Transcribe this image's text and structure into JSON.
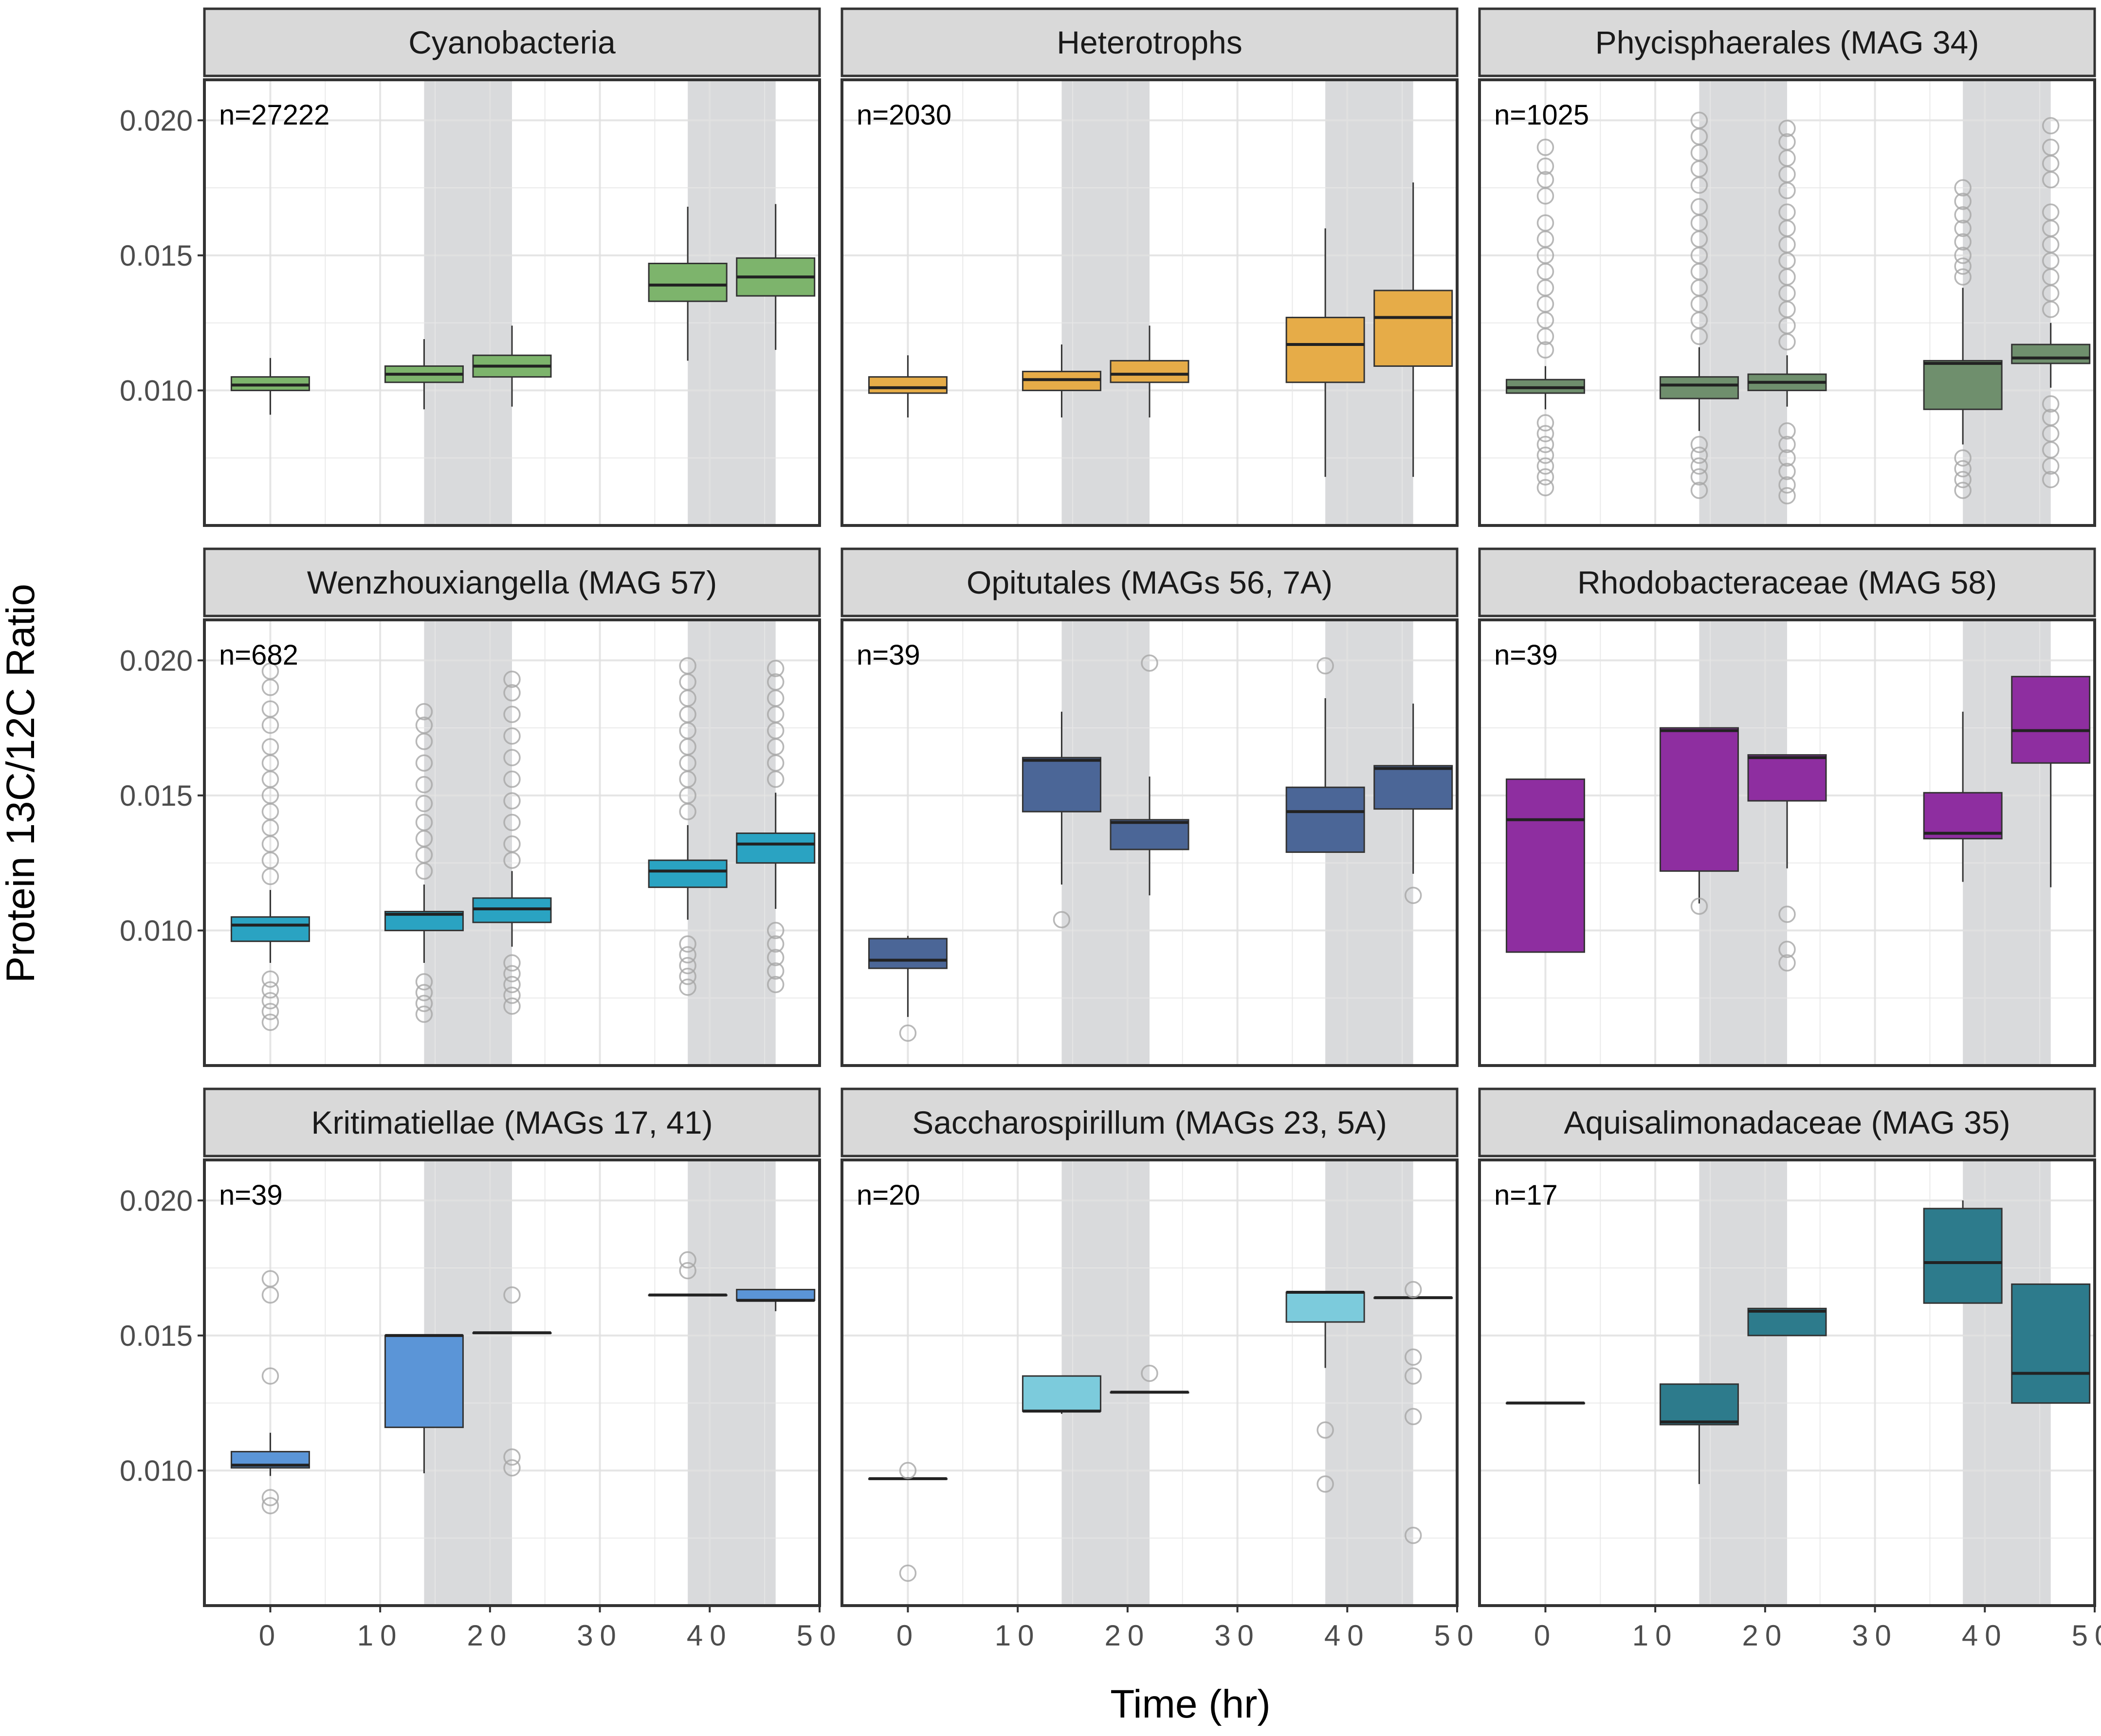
{
  "chart_data": {
    "type": "boxplot",
    "xlabel": "Time (hr)",
    "ylabel": "Protein 13C/12C Ratio",
    "x_ticks": [
      "0",
      "10",
      "20",
      "30",
      "40",
      "50"
    ],
    "y_ticks": [
      "0.010",
      "0.015",
      "0.020"
    ],
    "xlim": [
      -6,
      50
    ],
    "ylim": [
      0.005,
      0.0215
    ],
    "grid": true,
    "dark_periods_hr": [
      [
        14,
        22
      ],
      [
        38,
        46
      ]
    ],
    "colors": {
      "Cyanobacteria": "#7db46c",
      "Heterotrophs": "#e6ac48",
      "Phycisphaerales (MAG 34)": "#6f8f6d",
      "Wenzhouxiangella (MAG 57)": "#2aa3c2",
      "Opitutales (MAGs 56, 7A)": "#4b6697",
      "Rhodobacteraceae (MAG 58)": "#8e2ea0",
      "Kritimatiellae (MAGs 17, 41)": "#5b95d7",
      "Saccharospirillum (MAGs 23, 5A)": "#7ccbdc",
      "Aquisalimonadaceae (MAG 35)": "#2d7b8c",
      "strip_fill": "#d9d9d9",
      "shade": "#d9dadc",
      "outlier": "#a6a6a6"
    },
    "panels": [
      {
        "title": "Cyanobacteria",
        "n_label": "n=27222",
        "boxes": [
          {
            "x": 0,
            "q1": 0.01,
            "median": 0.0102,
            "q3": 0.0105,
            "lo": 0.0091,
            "hi": 0.0112,
            "outliers": []
          },
          {
            "x": 14,
            "q1": 0.0103,
            "median": 0.0106,
            "q3": 0.0109,
            "lo": 0.0093,
            "hi": 0.0119,
            "outliers": []
          },
          {
            "x": 22,
            "q1": 0.0105,
            "median": 0.0109,
            "q3": 0.0113,
            "lo": 0.0094,
            "hi": 0.0124,
            "outliers": []
          },
          {
            "x": 38,
            "q1": 0.0133,
            "median": 0.0139,
            "q3": 0.0147,
            "lo": 0.0111,
            "hi": 0.0168,
            "outliers": []
          },
          {
            "x": 46,
            "q1": 0.0135,
            "median": 0.0142,
            "q3": 0.0149,
            "lo": 0.0115,
            "hi": 0.0169,
            "outliers": []
          }
        ]
      },
      {
        "title": "Heterotrophs",
        "n_label": "n=2030",
        "boxes": [
          {
            "x": 0,
            "q1": 0.0099,
            "median": 0.0101,
            "q3": 0.0105,
            "lo": 0.009,
            "hi": 0.0113,
            "outliers": []
          },
          {
            "x": 14,
            "q1": 0.01,
            "median": 0.0104,
            "q3": 0.0107,
            "lo": 0.009,
            "hi": 0.0117,
            "outliers": []
          },
          {
            "x": 22,
            "q1": 0.0103,
            "median": 0.0106,
            "q3": 0.0111,
            "lo": 0.009,
            "hi": 0.0124,
            "outliers": []
          },
          {
            "x": 38,
            "q1": 0.0103,
            "median": 0.0117,
            "q3": 0.0127,
            "lo": 0.0068,
            "hi": 0.016,
            "outliers": []
          },
          {
            "x": 46,
            "q1": 0.0109,
            "median": 0.0127,
            "q3": 0.0137,
            "lo": 0.0068,
            "hi": 0.0177,
            "outliers": []
          }
        ]
      },
      {
        "title": "Phycisphaerales (MAG 34)",
        "n_label": "n=1025",
        "boxes": [
          {
            "x": 0,
            "q1": 0.0099,
            "median": 0.0101,
            "q3": 0.0104,
            "lo": 0.0093,
            "hi": 0.0109,
            "outliers": [
              0.0064,
              0.0068,
              0.0072,
              0.0076,
              0.008,
              0.0084,
              0.0088,
              0.0115,
              0.012,
              0.0126,
              0.0132,
              0.0138,
              0.0144,
              0.015,
              0.0156,
              0.0162,
              0.0172,
              0.0178,
              0.0183,
              0.019
            ]
          },
          {
            "x": 14,
            "q1": 0.0097,
            "median": 0.0102,
            "q3": 0.0105,
            "lo": 0.0085,
            "hi": 0.0116,
            "outliers": [
              0.0063,
              0.0068,
              0.0072,
              0.0076,
              0.008,
              0.012,
              0.0126,
              0.0132,
              0.0138,
              0.0144,
              0.015,
              0.0156,
              0.0162,
              0.0168,
              0.0176,
              0.0182,
              0.0188,
              0.0194,
              0.02
            ]
          },
          {
            "x": 22,
            "q1": 0.01,
            "median": 0.0103,
            "q3": 0.0106,
            "lo": 0.0094,
            "hi": 0.0113,
            "outliers": [
              0.0061,
              0.0065,
              0.007,
              0.0075,
              0.008,
              0.0085,
              0.0118,
              0.0124,
              0.013,
              0.0136,
              0.0142,
              0.0148,
              0.0154,
              0.016,
              0.0166,
              0.0174,
              0.018,
              0.0186,
              0.0192,
              0.0197
            ]
          },
          {
            "x": 38,
            "q1": 0.0093,
            "median": 0.011,
            "q3": 0.0111,
            "lo": 0.008,
            "hi": 0.0138,
            "outliers": [
              0.0063,
              0.0067,
              0.0071,
              0.0075,
              0.0142,
              0.0146,
              0.015,
              0.0155,
              0.016,
              0.0165,
              0.017,
              0.0175
            ]
          },
          {
            "x": 46,
            "q1": 0.011,
            "median": 0.0112,
            "q3": 0.0117,
            "lo": 0.0101,
            "hi": 0.0125,
            "outliers": [
              0.0067,
              0.0072,
              0.0078,
              0.0084,
              0.009,
              0.0095,
              0.013,
              0.0136,
              0.0142,
              0.0148,
              0.0154,
              0.016,
              0.0166,
              0.0178,
              0.0184,
              0.019,
              0.0198
            ]
          }
        ]
      },
      {
        "title": "Wenzhouxiangella (MAG 57)",
        "n_label": "n=682",
        "boxes": [
          {
            "x": 0,
            "q1": 0.0096,
            "median": 0.0102,
            "q3": 0.0105,
            "lo": 0.0088,
            "hi": 0.0115,
            "outliers": [
              0.0066,
              0.007,
              0.0074,
              0.0078,
              0.0082,
              0.012,
              0.0126,
              0.0132,
              0.0138,
              0.0144,
              0.015,
              0.0156,
              0.0162,
              0.0168,
              0.0176,
              0.0182,
              0.019,
              0.0196
            ]
          },
          {
            "x": 14,
            "q1": 0.01,
            "median": 0.0106,
            "q3": 0.0107,
            "lo": 0.0088,
            "hi": 0.0117,
            "outliers": [
              0.0069,
              0.0073,
              0.0077,
              0.0081,
              0.0122,
              0.0128,
              0.0134,
              0.014,
              0.0147,
              0.0154,
              0.0162,
              0.017,
              0.0176,
              0.0181
            ]
          },
          {
            "x": 22,
            "q1": 0.0103,
            "median": 0.0108,
            "q3": 0.0112,
            "lo": 0.0094,
            "hi": 0.0122,
            "outliers": [
              0.0072,
              0.0076,
              0.008,
              0.0084,
              0.0088,
              0.0126,
              0.0132,
              0.014,
              0.0148,
              0.0156,
              0.0164,
              0.0172,
              0.018,
              0.0188,
              0.0193
            ]
          },
          {
            "x": 38,
            "q1": 0.0116,
            "median": 0.0122,
            "q3": 0.0126,
            "lo": 0.0104,
            "hi": 0.0139,
            "outliers": [
              0.0079,
              0.0083,
              0.0087,
              0.0091,
              0.0095,
              0.0144,
              0.015,
              0.0156,
              0.0162,
              0.0168,
              0.0174,
              0.018,
              0.0186,
              0.0192,
              0.0198
            ]
          },
          {
            "x": 46,
            "q1": 0.0125,
            "median": 0.0132,
            "q3": 0.0136,
            "lo": 0.0108,
            "hi": 0.0151,
            "outliers": [
              0.008,
              0.0085,
              0.009,
              0.0095,
              0.01,
              0.0156,
              0.0162,
              0.0168,
              0.0174,
              0.018,
              0.0186,
              0.0192,
              0.0197
            ]
          }
        ]
      },
      {
        "title": "Opitutales (MAGs 56, 7A)",
        "n_label": "n=39",
        "boxes": [
          {
            "x": 0,
            "q1": 0.0086,
            "median": 0.0089,
            "q3": 0.0097,
            "lo": 0.0068,
            "hi": 0.0098,
            "outliers": [
              0.0062
            ]
          },
          {
            "x": 14,
            "q1": 0.0144,
            "median": 0.0163,
            "q3": 0.0164,
            "lo": 0.0117,
            "hi": 0.0181,
            "outliers": [
              0.0104
            ]
          },
          {
            "x": 22,
            "q1": 0.013,
            "median": 0.014,
            "q3": 0.0141,
            "lo": 0.0113,
            "hi": 0.0157,
            "outliers": [
              0.0199
            ]
          },
          {
            "x": 38,
            "q1": 0.0129,
            "median": 0.0144,
            "q3": 0.0153,
            "lo": 0.0129,
            "hi": 0.0186,
            "outliers": [
              0.0198
            ]
          },
          {
            "x": 46,
            "q1": 0.0145,
            "median": 0.016,
            "q3": 0.0161,
            "lo": 0.0121,
            "hi": 0.0184,
            "outliers": [
              0.0113
            ]
          }
        ]
      },
      {
        "title": "Rhodobacteraceae (MAG 58)",
        "n_label": "n=39",
        "boxes": [
          {
            "x": 0,
            "q1": 0.0092,
            "median": 0.0141,
            "q3": 0.0156,
            "lo": 0.0092,
            "hi": 0.0156,
            "outliers": []
          },
          {
            "x": 14,
            "q1": 0.0122,
            "median": 0.0174,
            "q3": 0.0175,
            "lo": 0.011,
            "hi": 0.0175,
            "outliers": [
              0.0109
            ]
          },
          {
            "x": 22,
            "q1": 0.0148,
            "median": 0.0164,
            "q3": 0.0165,
            "lo": 0.0123,
            "hi": 0.0165,
            "outliers": [
              0.0088,
              0.0093,
              0.0106
            ]
          },
          {
            "x": 38,
            "q1": 0.0134,
            "median": 0.0136,
            "q3": 0.0151,
            "lo": 0.0118,
            "hi": 0.0181,
            "outliers": []
          },
          {
            "x": 46,
            "q1": 0.0162,
            "median": 0.0174,
            "q3": 0.0194,
            "lo": 0.0116,
            "hi": 0.0194,
            "outliers": []
          }
        ]
      },
      {
        "title": "Kritimatiellae (MAGs 17, 41)",
        "n_label": "n=39",
        "boxes": [
          {
            "x": 0,
            "q1": 0.0101,
            "median": 0.0102,
            "q3": 0.0107,
            "lo": 0.0098,
            "hi": 0.0114,
            "outliers": [
              0.0087,
              0.009,
              0.0135,
              0.0165,
              0.0171
            ]
          },
          {
            "x": 14,
            "q1": 0.0116,
            "median": 0.015,
            "q3": 0.015,
            "lo": 0.0099,
            "hi": 0.015,
            "outliers": []
          },
          {
            "x": 22,
            "q1": 0.0151,
            "median": 0.0151,
            "q3": 0.0151,
            "lo": 0.0151,
            "hi": 0.0151,
            "outliers": [
              0.0101,
              0.0105,
              0.0165
            ]
          },
          {
            "x": 38,
            "q1": 0.0165,
            "median": 0.0165,
            "q3": 0.0165,
            "lo": 0.0165,
            "hi": 0.0165,
            "outliers": [
              0.0174,
              0.0178
            ]
          },
          {
            "x": 46,
            "q1": 0.0163,
            "median": 0.0163,
            "q3": 0.0167,
            "lo": 0.0159,
            "hi": 0.0167,
            "outliers": []
          }
        ]
      },
      {
        "title": "Saccharospirillum (MAGs 23, 5A)",
        "n_label": "n=20",
        "boxes": [
          {
            "x": 0,
            "q1": 0.0097,
            "median": 0.0097,
            "q3": 0.0097,
            "lo": 0.0097,
            "hi": 0.0097,
            "outliers": [
              0.0062,
              0.01
            ]
          },
          {
            "x": 14,
            "q1": 0.0122,
            "median": 0.0122,
            "q3": 0.0135,
            "lo": 0.0121,
            "hi": 0.0135,
            "outliers": []
          },
          {
            "x": 22,
            "q1": 0.0129,
            "median": 0.0129,
            "q3": 0.0129,
            "lo": 0.0129,
            "hi": 0.0129,
            "outliers": [
              0.0136
            ]
          },
          {
            "x": 38,
            "q1": 0.0155,
            "median": 0.0166,
            "q3": 0.0166,
            "lo": 0.0138,
            "hi": 0.0166,
            "outliers": [
              0.0095,
              0.0115
            ]
          },
          {
            "x": 46,
            "q1": 0.0164,
            "median": 0.0164,
            "q3": 0.0164,
            "lo": 0.0164,
            "hi": 0.0164,
            "outliers": [
              0.0076,
              0.012,
              0.0135,
              0.0142,
              0.0167
            ]
          }
        ]
      },
      {
        "title": "Aquisalimonadaceae (MAG 35)",
        "n_label": "n=17",
        "boxes": [
          {
            "x": 0,
            "q1": 0.0125,
            "median": 0.0125,
            "q3": 0.0125,
            "lo": 0.0125,
            "hi": 0.0125,
            "outliers": []
          },
          {
            "x": 14,
            "q1": 0.0117,
            "median": 0.0118,
            "q3": 0.0132,
            "lo": 0.0095,
            "hi": 0.0132,
            "outliers": []
          },
          {
            "x": 22,
            "q1": 0.015,
            "median": 0.0159,
            "q3": 0.016,
            "lo": 0.015,
            "hi": 0.016,
            "outliers": []
          },
          {
            "x": 38,
            "q1": 0.0162,
            "median": 0.0177,
            "q3": 0.0197,
            "lo": 0.0162,
            "hi": 0.02,
            "outliers": []
          },
          {
            "x": 46,
            "q1": 0.0125,
            "median": 0.0136,
            "q3": 0.0169,
            "lo": 0.0125,
            "hi": 0.0169,
            "outliers": []
          }
        ]
      }
    ]
  }
}
